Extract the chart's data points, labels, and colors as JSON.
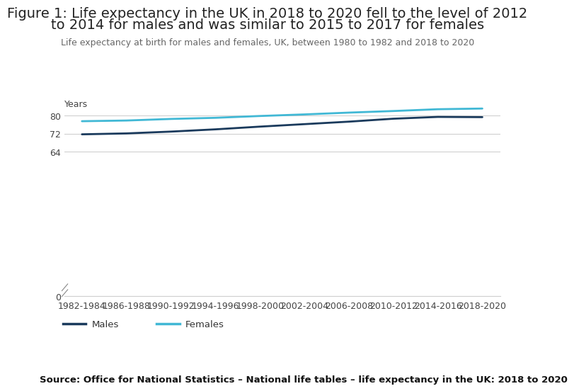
{
  "title_line1": "Figure 1: Life expectancy in the UK in 2018 to 2020 fell to the level of 2012",
  "title_line2": "to 2014 for males and was similar to 2015 to 2017 for females",
  "subtitle": "Life expectancy at birth for males and females, UK, between 1980 to 1982 and 2018 to 2020",
  "source": "Source: Office for National Statistics – National life tables – life expectancy in the UK: 2018 to 2020",
  "ylabel": "Years",
  "x_labels": [
    "1982-1984",
    "1986-1988",
    "1990-1992",
    "1994-1996",
    "1998-2000",
    "2002-2004",
    "2006-2008",
    "2010-2012",
    "2014-2016",
    "2018-2020"
  ],
  "males": [
    71.7,
    72.1,
    72.9,
    73.9,
    75.1,
    76.2,
    77.3,
    78.6,
    79.4,
    79.3
  ],
  "females": [
    77.5,
    77.8,
    78.5,
    79.0,
    79.8,
    80.5,
    81.3,
    82.0,
    82.8,
    83.1
  ],
  "male_color": "#1a3a5c",
  "female_color": "#41b8d5",
  "background_color": "#ffffff",
  "line_width": 2.0,
  "yticks": [
    0,
    64,
    72,
    80
  ],
  "ylim": [
    0,
    86
  ],
  "grid_color": "#d0d0d0",
  "title_fontsize": 14,
  "subtitle_fontsize": 9,
  "axis_fontsize": 9,
  "source_fontsize": 9.5
}
